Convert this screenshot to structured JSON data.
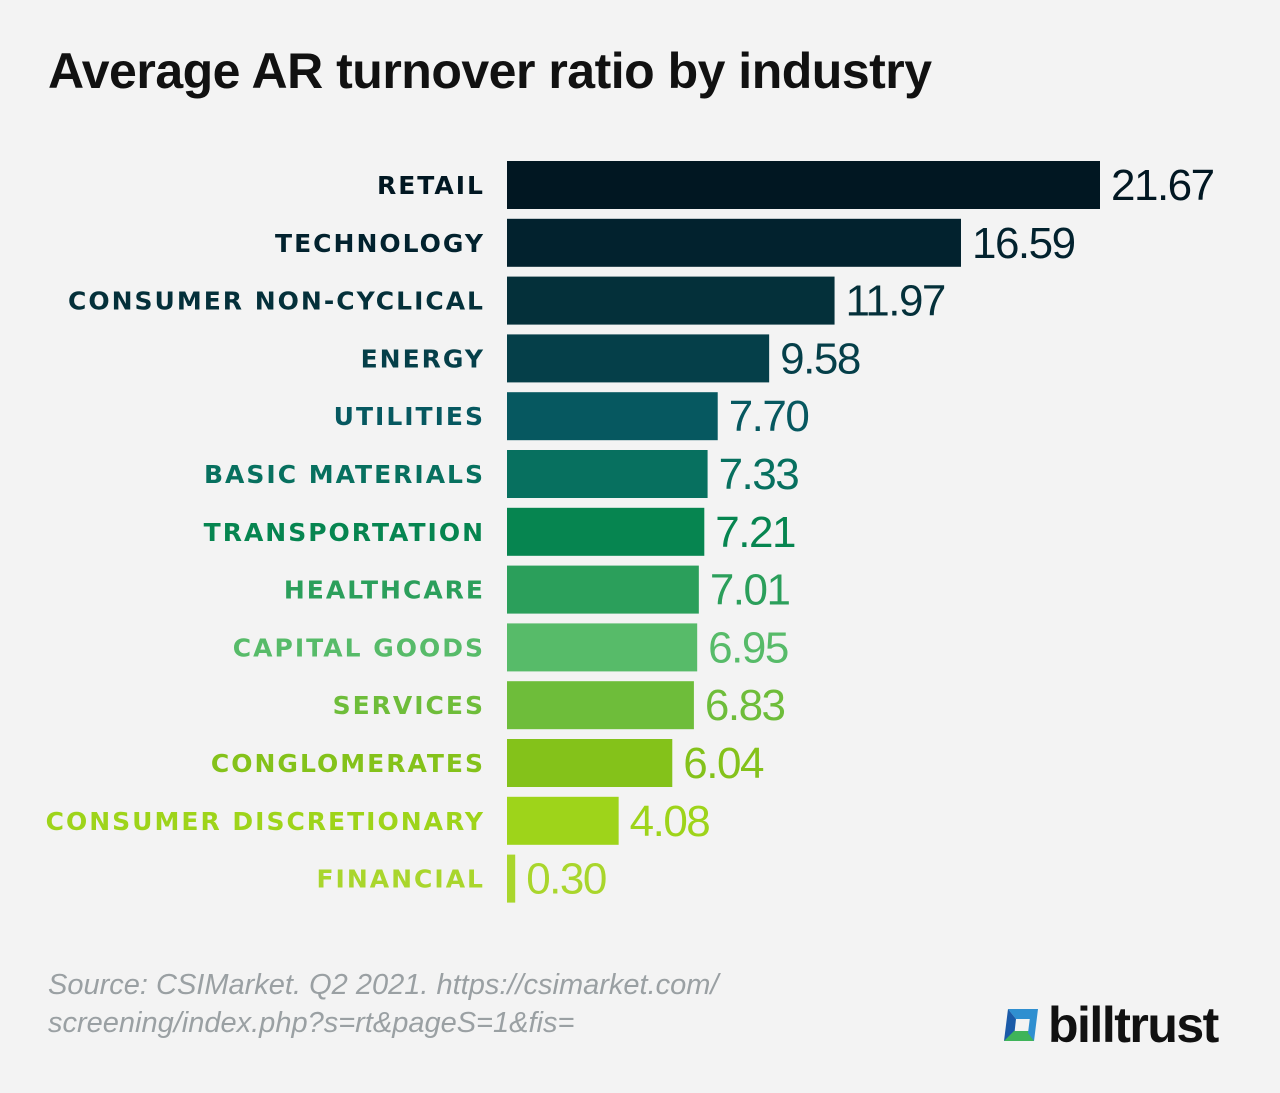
{
  "chart_data": {
    "type": "bar",
    "orientation": "horizontal",
    "title": "Average AR turnover ratio by industry",
    "categories": [
      "RETAIL",
      "TECHNOLOGY",
      "CONSUMER NON-CYCLICAL",
      "ENERGY",
      "UTILITIES",
      "BASIC MATERIALS",
      "TRANSPORTATION",
      "HEALTHCARE",
      "CAPITAL GOODS",
      "SERVICES",
      "CONGLOMERATES",
      "CONSUMER DISCRETIONARY",
      "FINANCIAL"
    ],
    "values": [
      21.67,
      16.59,
      11.97,
      9.58,
      7.7,
      7.33,
      7.21,
      7.01,
      6.95,
      6.83,
      6.04,
      4.08,
      0.3
    ],
    "value_labels": [
      "21.67",
      "16.59",
      "11.97",
      "9.58",
      "7.70",
      "7.33",
      "7.21",
      "7.01",
      "6.95",
      "6.83",
      "6.04",
      "4.08",
      "0.30"
    ],
    "colors": [
      "#011722",
      "#02222e",
      "#04303a",
      "#053f49",
      "#065860",
      "#07705f",
      "#068550",
      "#2b9f5b",
      "#57bb69",
      "#6ebd3a",
      "#84c21a",
      "#9ed41a",
      "#a9d62c"
    ],
    "xlabel": "",
    "ylabel": "",
    "grid": false,
    "legend": "none"
  },
  "source": {
    "line1": "Source: CSIMarket. Q2 2021. https://csimarket.com/",
    "line2": "screening/index.php?s=rt&pageS=1&fis="
  },
  "logo": {
    "text": "billtrust"
  }
}
